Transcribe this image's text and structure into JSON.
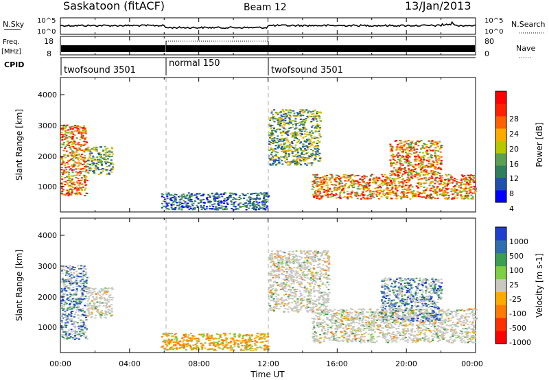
{
  "header": {
    "station": "Saskatoon (fitACF)",
    "beam": "Beam 12",
    "date": "13/Jan/2013"
  },
  "noise_panel": {
    "left_label": "N.Sky",
    "left_ticks": [
      "10^5",
      "10^0"
    ],
    "right_label": "N.Search",
    "right_ticks": [
      "10^5",
      "10^0"
    ]
  },
  "freq_panel": {
    "left_label_top": "Freq.",
    "left_label_bottom": "[MHz]",
    "left_ticks": [
      "18",
      "8"
    ],
    "right_label": "Nave",
    "right_ticks": [
      "80",
      "0"
    ]
  },
  "cpid": {
    "label": "CPID",
    "segments": [
      {
        "name": "twofsound 3501",
        "start_hour": 0,
        "end_hour": 6
      },
      {
        "name": "normal 150",
        "start_hour": 6,
        "end_hour": 12
      },
      {
        "name": "twofsound 3501",
        "start_hour": 12,
        "end_hour": 24
      }
    ]
  },
  "x_axis": {
    "label": "Time UT",
    "ticks": [
      "00:00",
      "04:00",
      "08:00",
      "12:00",
      "16:00",
      "20:00",
      "00:00"
    ]
  },
  "power_panel": {
    "ylabel": "Slant Range [km]",
    "yticks": [
      "1000",
      "2000",
      "3000",
      "4000"
    ],
    "colorbar_label": "Power [dB]",
    "colorbar_ticks": [
      "28",
      "24",
      "20",
      "16",
      "12",
      "8",
      "4"
    ],
    "colors": [
      "#0000ff",
      "#1f4fb0",
      "#2f7f5f",
      "#5aa050",
      "#b8c800",
      "#ffaa00",
      "#ff6000",
      "#ff2000",
      "#ff0000"
    ]
  },
  "velocity_panel": {
    "ylabel": "Slant Range [km]",
    "yticks": [
      "1000",
      "2000",
      "3000",
      "4000"
    ],
    "colorbar_label": "Velocity [m s-1]",
    "colorbar_ticks": [
      "1000",
      "500",
      "100",
      "25",
      "-25",
      "-100",
      "-500",
      "-1000"
    ],
    "colors": [
      "#1f3fd0",
      "#2f6fb0",
      "#3c9e50",
      "#7ed040",
      "#c8c8c0",
      "#ffaa00",
      "#ff7a00",
      "#ff3000",
      "#ff0000"
    ]
  },
  "chart_data": [
    {
      "type": "line",
      "title": "N.Sky",
      "x_range_hours": [
        0,
        24
      ],
      "y_scale": "log",
      "ylim": [
        "10^0",
        "10^5"
      ]
    },
    {
      "type": "line",
      "title": "Freq. [MHz]",
      "ylim": [
        8,
        18
      ],
      "segments_mhz": [
        {
          "start_hour": 0,
          "end_hour": 6,
          "mode": "alternating 10-18"
        },
        {
          "start_hour": 6,
          "end_hour": 12,
          "value": 18
        },
        {
          "start_hour": 12,
          "end_hour": 24,
          "mode": "alternating 10-18"
        }
      ]
    },
    {
      "type": "heatmap",
      "title": "Power [dB]",
      "x_range_hours": [
        0,
        24
      ],
      "y_range_km": [
        180,
        4500
      ],
      "colorbar_range_db": [
        0,
        30
      ],
      "scatter_regions": [
        {
          "start_hour": 0.0,
          "end_hour": 1.5,
          "range_km": [
            700,
            3000
          ],
          "level": "high"
        },
        {
          "start_hour": 1.5,
          "end_hour": 3.0,
          "range_km": [
            1400,
            2300
          ],
          "level": "medium"
        },
        {
          "start_hour": 5.8,
          "end_hour": 12.0,
          "range_km": [
            250,
            800
          ],
          "level": "low"
        },
        {
          "start_hour": 12.0,
          "end_hour": 15.0,
          "range_km": [
            1700,
            3500
          ],
          "level": "medium"
        },
        {
          "start_hour": 14.5,
          "end_hour": 24.0,
          "range_km": [
            600,
            1400
          ],
          "level": "high"
        },
        {
          "start_hour": 19.0,
          "end_hour": 22.0,
          "range_km": [
            1400,
            2500
          ],
          "level": "high"
        }
      ]
    },
    {
      "type": "heatmap",
      "title": "Velocity [m s-1]",
      "x_range_hours": [
        0,
        24
      ],
      "y_range_km": [
        180,
        4500
      ],
      "colorbar_range_ms": [
        -1000,
        1000
      ],
      "scatter_regions": [
        {
          "start_hour": 0.0,
          "end_hour": 1.5,
          "range_km": [
            600,
            3000
          ],
          "dominant": "positive"
        },
        {
          "start_hour": 1.5,
          "end_hour": 3.0,
          "range_km": [
            1300,
            2300
          ],
          "dominant": "near zero"
        },
        {
          "start_hour": 5.8,
          "end_hour": 12.0,
          "range_km": [
            250,
            800
          ],
          "dominant": "negative"
        },
        {
          "start_hour": 12.0,
          "end_hour": 15.5,
          "range_km": [
            1500,
            3500
          ],
          "dominant": "near zero"
        },
        {
          "start_hour": 14.5,
          "end_hour": 24.0,
          "range_km": [
            500,
            1600
          ],
          "dominant": "near zero"
        },
        {
          "start_hour": 18.5,
          "end_hour": 22.0,
          "range_km": [
            1200,
            2600
          ],
          "dominant": "positive"
        }
      ]
    }
  ]
}
